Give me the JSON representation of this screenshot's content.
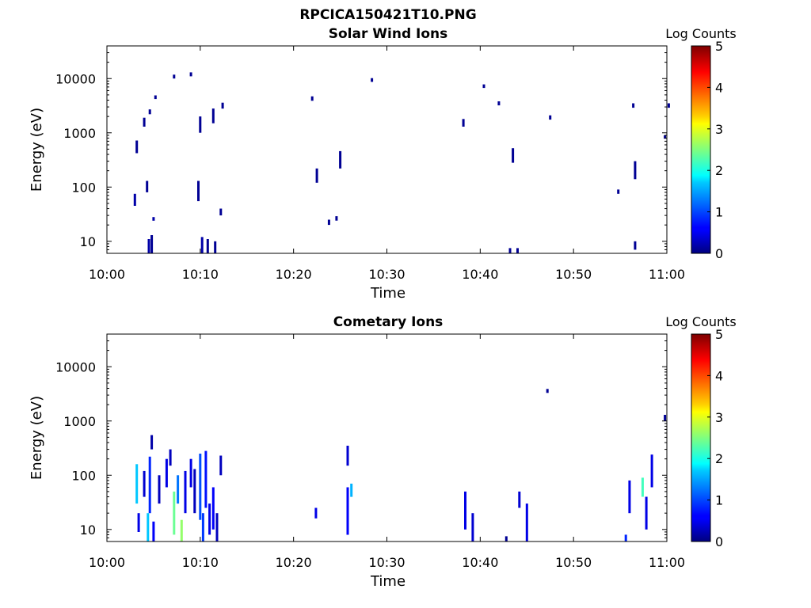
{
  "figure": {
    "filename": "RPCICA150421T10.PNG"
  },
  "colorbar": {
    "label": "Log Counts",
    "ticks": [
      "0",
      "1",
      "2",
      "3",
      "4",
      "5"
    ],
    "min": 0,
    "max": 5
  },
  "chart_data": [
    {
      "type": "heatmap",
      "title": "Solar Wind Ions",
      "xlabel": "Time",
      "ylabel": "Energy (eV)",
      "xticks": [
        "10:00",
        "10:10",
        "10:20",
        "10:30",
        "10:40",
        "10:50",
        "11:00"
      ],
      "xlim": [
        "10:00",
        "11:00"
      ],
      "yticks": [
        "10",
        "100",
        "1000",
        "10000"
      ],
      "yscale": "log",
      "ylim": [
        6,
        40000
      ],
      "color_label": "Log Counts",
      "cells": [
        {
          "t": "10:04.5",
          "e_lo": 6,
          "e_hi": 11,
          "v": 0.2
        },
        {
          "t": "10:04.8",
          "e_lo": 6,
          "e_hi": 13,
          "v": 0.1
        },
        {
          "t": "10:05.0",
          "e_lo": 24,
          "e_hi": 28,
          "v": 0.2
        },
        {
          "t": "10:04.3",
          "e_lo": 80,
          "e_hi": 130,
          "v": 0.1
        },
        {
          "t": "10:03.0",
          "e_lo": 45,
          "e_hi": 75,
          "v": 0.2
        },
        {
          "t": "10:03.2",
          "e_lo": 420,
          "e_hi": 720,
          "v": 0.1
        },
        {
          "t": "10:04.0",
          "e_lo": 1300,
          "e_hi": 1900,
          "v": 0.1
        },
        {
          "t": "10:04.6",
          "e_lo": 2200,
          "e_hi": 2700,
          "v": 0.1
        },
        {
          "t": "10:05.2",
          "e_lo": 4200,
          "e_hi": 4900,
          "v": 0.1
        },
        {
          "t": "10:07.2",
          "e_lo": 10000,
          "e_hi": 11800,
          "v": 0.1
        },
        {
          "t": "10:09.0",
          "e_lo": 11000,
          "e_hi": 13000,
          "v": 0.1
        },
        {
          "t": "10:10.2",
          "e_lo": 6,
          "e_hi": 12,
          "v": 0.2
        },
        {
          "t": "10:10.8",
          "e_lo": 6,
          "e_hi": 11,
          "v": 0.1
        },
        {
          "t": "10:11.6",
          "e_lo": 6,
          "e_hi": 10,
          "v": 0.1
        },
        {
          "t": "10:09.8",
          "e_lo": 55,
          "e_hi": 130,
          "v": 0.1
        },
        {
          "t": "10:10.0",
          "e_lo": 1000,
          "e_hi": 2000,
          "v": 0.1
        },
        {
          "t": "10:11.4",
          "e_lo": 1500,
          "e_hi": 2800,
          "v": 0.1
        },
        {
          "t": "10:12.2",
          "e_lo": 30,
          "e_hi": 40,
          "v": 0.1
        },
        {
          "t": "10:12.4",
          "e_lo": 2800,
          "e_hi": 3600,
          "v": 0.1
        },
        {
          "t": "10:22.0",
          "e_lo": 3900,
          "e_hi": 4700,
          "v": 0.1
        },
        {
          "t": "10:22.5",
          "e_lo": 120,
          "e_hi": 220,
          "v": 0.1
        },
        {
          "t": "10:23.8",
          "e_lo": 20,
          "e_hi": 25,
          "v": 0.1
        },
        {
          "t": "10:24.6",
          "e_lo": 24,
          "e_hi": 29,
          "v": 0.1
        },
        {
          "t": "10:25.0",
          "e_lo": 220,
          "e_hi": 460,
          "v": 0.1
        },
        {
          "t": "10:28.4",
          "e_lo": 8700,
          "e_hi": 10200,
          "v": 0.1
        },
        {
          "t": "10:38.2",
          "e_lo": 1300,
          "e_hi": 1800,
          "v": 0.1
        },
        {
          "t": "10:40.4",
          "e_lo": 6700,
          "e_hi": 7800,
          "v": 0.1
        },
        {
          "t": "10:42.0",
          "e_lo": 3200,
          "e_hi": 3800,
          "v": 0.1
        },
        {
          "t": "10:43.2",
          "e_lo": 6,
          "e_hi": 7.5,
          "v": 0.1
        },
        {
          "t": "10:44.0",
          "e_lo": 6,
          "e_hi": 7.5,
          "v": 0.1
        },
        {
          "t": "10:43.5",
          "e_lo": 280,
          "e_hi": 520,
          "v": 0.1
        },
        {
          "t": "10:47.5",
          "e_lo": 1750,
          "e_hi": 2100,
          "v": 0.1
        },
        {
          "t": "10:54.8",
          "e_lo": 75,
          "e_hi": 90,
          "v": 0.1
        },
        {
          "t": "10:56.4",
          "e_lo": 2900,
          "e_hi": 3500,
          "v": 0.1
        },
        {
          "t": "10:56.6",
          "e_lo": 7,
          "e_hi": 10,
          "v": 0.1
        },
        {
          "t": "10:56.6",
          "e_lo": 140,
          "e_hi": 300,
          "v": 0.1
        },
        {
          "t": "10:59.8",
          "e_lo": 780,
          "e_hi": 900,
          "v": 0.1
        },
        {
          "t": "11:00.2",
          "e_lo": 2900,
          "e_hi": 3500,
          "v": 0.1
        }
      ]
    },
    {
      "type": "heatmap",
      "title": "Cometary Ions",
      "xlabel": "Time",
      "ylabel": "Energy (eV)",
      "xticks": [
        "10:00",
        "10:10",
        "10:20",
        "10:30",
        "10:40",
        "10:50",
        "11:00"
      ],
      "xlim": [
        "10:00",
        "11:00"
      ],
      "yticks": [
        "10",
        "100",
        "1000",
        "10000"
      ],
      "yscale": "log",
      "ylim": [
        6,
        40000
      ],
      "color_label": "Log Counts",
      "cells": [
        {
          "t": "10:03.2",
          "e_lo": 30,
          "e_hi": 160,
          "v": 1.6
        },
        {
          "t": "10:03.4",
          "e_lo": 9,
          "e_hi": 20,
          "v": 0.5
        },
        {
          "t": "10:04.0",
          "e_lo": 40,
          "e_hi": 120,
          "v": 0.4
        },
        {
          "t": "10:04.4",
          "e_lo": 6,
          "e_hi": 20,
          "v": 1.6
        },
        {
          "t": "10:04.6",
          "e_lo": 20,
          "e_hi": 220,
          "v": 0.8
        },
        {
          "t": "10:04.8",
          "e_lo": 300,
          "e_hi": 550,
          "v": 0.2
        },
        {
          "t": "10:05.0",
          "e_lo": 6,
          "e_hi": 14,
          "v": 0.6
        },
        {
          "t": "10:05.6",
          "e_lo": 30,
          "e_hi": 100,
          "v": 0.3
        },
        {
          "t": "10:06.4",
          "e_lo": 60,
          "e_hi": 200,
          "v": 0.5
        },
        {
          "t": "10:06.8",
          "e_lo": 150,
          "e_hi": 300,
          "v": 0.3
        },
        {
          "t": "10:07.2",
          "e_lo": 8,
          "e_hi": 50,
          "v": 2.4
        },
        {
          "t": "10:07.6",
          "e_lo": 30,
          "e_hi": 100,
          "v": 1.2
        },
        {
          "t": "10:08.0",
          "e_lo": 6,
          "e_hi": 15,
          "v": 2.6
        },
        {
          "t": "10:08.4",
          "e_lo": 20,
          "e_hi": 120,
          "v": 0.5
        },
        {
          "t": "10:09.0",
          "e_lo": 60,
          "e_hi": 200,
          "v": 0.5
        },
        {
          "t": "10:09.4",
          "e_lo": 20,
          "e_hi": 130,
          "v": 0.3
        },
        {
          "t": "10:10.0",
          "e_lo": 15,
          "e_hi": 250,
          "v": 1.0
        },
        {
          "t": "10:10.3",
          "e_lo": 6,
          "e_hi": 20,
          "v": 0.9
        },
        {
          "t": "10:10.6",
          "e_lo": 25,
          "e_hi": 280,
          "v": 0.7
        },
        {
          "t": "10:11.0",
          "e_lo": 8,
          "e_hi": 30,
          "v": 0.5
        },
        {
          "t": "10:11.4",
          "e_lo": 10,
          "e_hi": 60,
          "v": 0.6
        },
        {
          "t": "10:11.8",
          "e_lo": 6,
          "e_hi": 20,
          "v": 0.3
        },
        {
          "t": "10:12.2",
          "e_lo": 100,
          "e_hi": 230,
          "v": 0.3
        },
        {
          "t": "10:22.4",
          "e_lo": 16,
          "e_hi": 25,
          "v": 0.5
        },
        {
          "t": "10:25.8",
          "e_lo": 150,
          "e_hi": 350,
          "v": 0.4
        },
        {
          "t": "10:25.8",
          "e_lo": 8,
          "e_hi": 60,
          "v": 0.6
        },
        {
          "t": "10:26.2",
          "e_lo": 40,
          "e_hi": 70,
          "v": 1.5
        },
        {
          "t": "10:38.4",
          "e_lo": 10,
          "e_hi": 50,
          "v": 0.5
        },
        {
          "t": "10:39.2",
          "e_lo": 6,
          "e_hi": 20,
          "v": 0.4
        },
        {
          "t": "10:42.8",
          "e_lo": 6,
          "e_hi": 7.5,
          "v": 0.1
        },
        {
          "t": "10:44.2",
          "e_lo": 25,
          "e_hi": 50,
          "v": 0.4
        },
        {
          "t": "10:45.0",
          "e_lo": 6,
          "e_hi": 30,
          "v": 0.5
        },
        {
          "t": "10:47.2",
          "e_lo": 3300,
          "e_hi": 3900,
          "v": 0.1
        },
        {
          "t": "10:55.6",
          "e_lo": 6,
          "e_hi": 8,
          "v": 0.8
        },
        {
          "t": "10:56.0",
          "e_lo": 20,
          "e_hi": 80,
          "v": 0.5
        },
        {
          "t": "10:57.4",
          "e_lo": 40,
          "e_hi": 90,
          "v": 2.2
        },
        {
          "t": "10:57.8",
          "e_lo": 10,
          "e_hi": 40,
          "v": 0.5
        },
        {
          "t": "10:58.4",
          "e_lo": 60,
          "e_hi": 240,
          "v": 0.5
        },
        {
          "t": "10:59.8",
          "e_lo": 1000,
          "e_hi": 1300,
          "v": 0.1
        }
      ]
    }
  ]
}
